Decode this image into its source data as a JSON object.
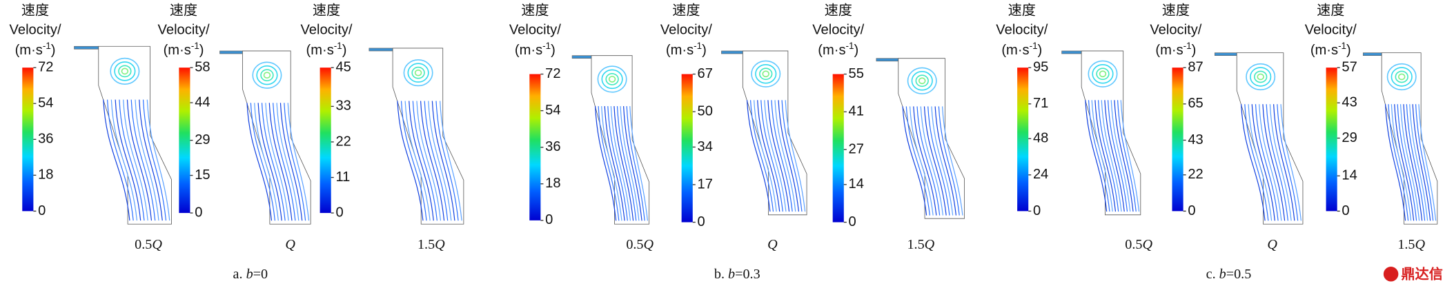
{
  "legend_title": {
    "chinese": "速度",
    "english": "Velocity/",
    "unit_base": "(m·s",
    "unit_exp": "-1",
    "unit_close": ")"
  },
  "groups": [
    {
      "caption": {
        "prefix": "a. ",
        "variable": "b",
        "suffix": "=0"
      },
      "panels": [
        {
          "flow_coef": "0.5",
          "flow_var": "Q",
          "ticks": [
            72,
            54,
            36,
            18,
            0
          ]
        },
        {
          "flow_var": "Q",
          "ticks": [
            58,
            44,
            29,
            15,
            0
          ]
        },
        {
          "flow_coef": "1.5",
          "flow_var": "Q",
          "ticks": [
            45,
            33,
            22,
            11,
            0
          ]
        }
      ]
    },
    {
      "caption": {
        "prefix": "b. ",
        "variable": "b",
        "suffix": "=0.3"
      },
      "panels": [
        {
          "flow_coef": "0.5",
          "flow_var": "Q",
          "ticks": [
            72,
            54,
            36,
            18,
            0
          ]
        },
        {
          "flow_var": "Q",
          "ticks": [
            67,
            50,
            34,
            17,
            0
          ]
        },
        {
          "flow_coef": "1.5",
          "flow_var": "Q",
          "ticks": [
            55,
            41,
            27,
            14,
            0
          ]
        }
      ]
    },
    {
      "caption": {
        "prefix": "c. ",
        "variable": "b",
        "suffix": "=0.5"
      },
      "panels": [
        {
          "flow_coef": "0.5",
          "flow_var": "Q",
          "ticks": [
            95,
            71,
            48,
            24,
            0
          ]
        },
        {
          "flow_var": "Q",
          "ticks": [
            87,
            65,
            43,
            22,
            0
          ]
        },
        {
          "flow_coef": "1.5",
          "flow_var": "Q",
          "ticks": [
            57,
            43,
            29,
            14,
            0
          ]
        }
      ]
    }
  ],
  "watermark": "鼎达信"
}
